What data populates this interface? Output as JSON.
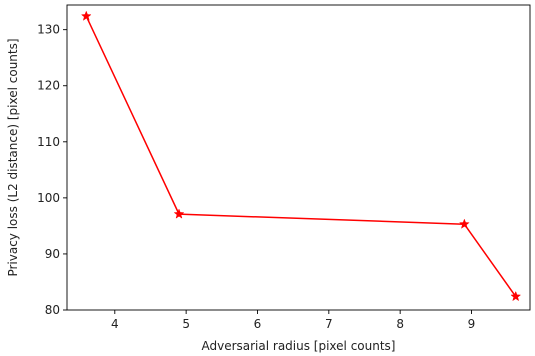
{
  "chart_data": {
    "type": "line",
    "title": "",
    "xlabel": "Adversarial radius [pixel counts]",
    "ylabel": "Privacy loss (L2 distance) [pixel counts]",
    "xlim": [
      3.33,
      9.82
    ],
    "ylim": [
      80,
      134.4
    ],
    "xticks": [
      4,
      5,
      6,
      7,
      8,
      9
    ],
    "yticks": [
      80,
      90,
      100,
      110,
      120,
      130
    ],
    "grid": false,
    "legend": "none",
    "series": [
      {
        "color": "#ff0000",
        "marker": "star",
        "x": [
          3.6,
          4.9,
          8.9,
          9.62
        ],
        "y": [
          132.4,
          97.1,
          95.3,
          82.4
        ]
      }
    ]
  }
}
